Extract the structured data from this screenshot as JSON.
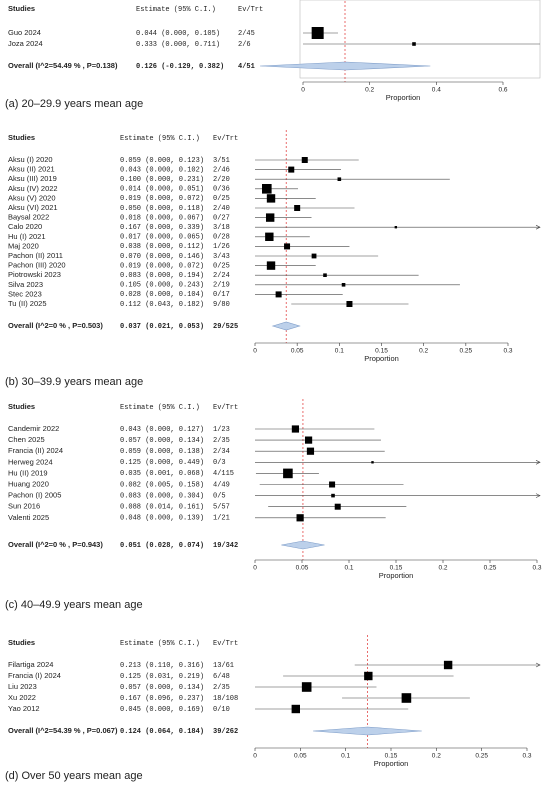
{
  "chart_data": [
    {
      "type": "forest",
      "caption": "(a) 20–29.9 years mean age",
      "columns": [
        "Studies",
        "Estimate (95% C.I.)",
        "Ev/Trt"
      ],
      "studies": [
        "Guo 2024",
        "Joza 2024"
      ],
      "estimate_labels": [
        "0.044 (0.000, 0.105)",
        "0.333 (0.000, 0.711)"
      ],
      "estimates": [
        0.044,
        0.333
      ],
      "lower": [
        0,
        0
      ],
      "upper": [
        0.105,
        0.711
      ],
      "ev_trt": [
        "2/45",
        "2/6"
      ],
      "weights": [
        10,
        3
      ],
      "overall": {
        "label": "Overall (I^2=54.49 % , P=0.138)",
        "estimate_label": "0.126 (-0.129, 0.382)",
        "estimate": 0.126,
        "lower": -0.129,
        "upper": 0.382,
        "ev_trt": "4/51"
      },
      "xlabel": "Proportion",
      "xlim": [
        0,
        0.6
      ],
      "xticks": [
        0,
        0.2,
        0.4,
        0.6
      ]
    },
    {
      "type": "forest",
      "caption": "(b) 30–39.9 years mean age",
      "columns": [
        "Studies",
        "Estimate (95% C.I.)",
        "Ev/Trt"
      ],
      "studies": [
        "Aksu (I) 2020",
        "Aksu (II) 2021",
        "Aksu (III) 2019",
        "Aksu (IV) 2022",
        "Aksu (V) 2020",
        "Aksu (VI) 2021",
        "Baysal 2022",
        "Calo 2020",
        "Hu (I) 2021",
        "Maj 2020",
        "Pachon (II) 2011",
        "Pachon (III) 2020",
        "Piotrowski 2023",
        "Silva 2023",
        "Stec 2023",
        "Tu (II) 2025"
      ],
      "estimate_labels": [
        "0.059 (0.000, 0.123)",
        "0.043 (0.000, 0.102)",
        "0.100 (0.000, 0.231)",
        "0.014 (0.000, 0.051)",
        "0.019 (0.000, 0.072)",
        "0.050 (0.000, 0.118)",
        "0.018 (0.000, 0.067)",
        "0.167 (0.000, 0.339)",
        "0.017 (0.000, 0.065)",
        "0.038 (0.000, 0.112)",
        "0.070 (0.000, 0.146)",
        "0.019 (0.000, 0.072)",
        "0.083 (0.000, 0.194)",
        "0.105 (0.000, 0.243)",
        "0.028 (0.000, 0.104)",
        "0.112 (0.043, 0.182)"
      ],
      "estimates": [
        0.059,
        0.043,
        0.1,
        0.014,
        0.019,
        0.05,
        0.018,
        0.167,
        0.017,
        0.038,
        0.07,
        0.019,
        0.083,
        0.105,
        0.028,
        0.112
      ],
      "lower": [
        0,
        0,
        0,
        0,
        0,
        0,
        0,
        0,
        0,
        0,
        0,
        0,
        0,
        0,
        0,
        0.043
      ],
      "upper": [
        0.123,
        0.102,
        0.231,
        0.051,
        0.072,
        0.118,
        0.067,
        0.339,
        0.065,
        0.112,
        0.146,
        0.072,
        0.194,
        0.243,
        0.104,
        0.182
      ],
      "ev_trt": [
        "3/51",
        "2/46",
        "2/20",
        "0/36",
        "0/25",
        "2/40",
        "0/27",
        "3/18",
        "0/28",
        "1/26",
        "3/43",
        "0/25",
        "2/24",
        "2/19",
        "0/17",
        "9/80"
      ],
      "weights": [
        5,
        5,
        3,
        8,
        7,
        5,
        7,
        2,
        7,
        5,
        4,
        7,
        3,
        3,
        5,
        5
      ],
      "overall": {
        "label": "Overall (I^2=0 % , P=0.503)",
        "estimate_label": "0.037 (0.021, 0.053)",
        "estimate": 0.037,
        "lower": 0.021,
        "upper": 0.053,
        "ev_trt": "29/525"
      },
      "xlabel": "Proportion",
      "xlim": [
        0,
        0.3
      ],
      "xticks": [
        0,
        0.05,
        0.1,
        0.15,
        0.2,
        0.25,
        0.3
      ]
    },
    {
      "type": "forest",
      "caption": "(c) 40–49.9 years mean age",
      "columns": [
        "Studies",
        "Estimate (95% C.I.)",
        "Ev/Trt"
      ],
      "studies": [
        "Candemir 2022",
        "Chen 2025",
        "Francia (II) 2024",
        "Herweg 2024",
        "Hu (II) 2019",
        "Huang 2020",
        "Pachon (I) 2005",
        "Sun 2016",
        "Valenti 2025"
      ],
      "estimate_labels": [
        "0.043 (0.000, 0.127)",
        "0.057 (0.000, 0.134)",
        "0.059 (0.000, 0.138)",
        "0.125 (0.000, 0.449)",
        "0.035 (0.001, 0.068)",
        "0.082 (0.005, 0.158)",
        "0.083 (0.000, 0.304)",
        "0.088 (0.014, 0.161)",
        "0.048 (0.000, 0.139)"
      ],
      "estimates": [
        0.043,
        0.057,
        0.059,
        0.125,
        0.035,
        0.082,
        0.083,
        0.088,
        0.048
      ],
      "lower": [
        0,
        0,
        0,
        0,
        0.001,
        0.005,
        0,
        0.014,
        0
      ],
      "upper": [
        0.127,
        0.134,
        0.138,
        0.449,
        0.068,
        0.158,
        0.304,
        0.161,
        0.139
      ],
      "ev_trt": [
        "1/23",
        "2/35",
        "2/34",
        "0/3",
        "4/115",
        "4/49",
        "0/5",
        "5/57",
        "1/21"
      ],
      "weights": [
        6,
        6,
        6,
        2,
        8,
        5,
        3,
        5,
        6
      ],
      "overall": {
        "label": "Overall (I^2=0 % , P=0.943)",
        "estimate_label": "0.051 (0.028, 0.074)",
        "estimate": 0.051,
        "lower": 0.028,
        "upper": 0.074,
        "ev_trt": "19/342"
      },
      "xlabel": "Proportion",
      "xlim": [
        0,
        0.3
      ],
      "xticks": [
        0,
        0.05,
        0.1,
        0.15,
        0.2,
        0.25,
        0.3
      ]
    },
    {
      "type": "forest",
      "caption": "(d) Over 50 years mean age",
      "columns": [
        "Studies",
        "Estimate (95% C.I.)",
        "Ev/Trt"
      ],
      "studies": [
        "Filartiga 2024",
        "Francia (I) 2024",
        "Liu 2023",
        "Xu 2022",
        "Yao 2012"
      ],
      "estimate_labels": [
        "0.213 (0.110, 0.316)",
        "0.125 (0.031, 0.219)",
        "0.057 (0.000, 0.134)",
        "0.167 (0.096, 0.237)",
        "0.045 (0.000, 0.169)"
      ],
      "estimates": [
        0.213,
        0.125,
        0.057,
        0.167,
        0.045
      ],
      "lower": [
        0.11,
        0.031,
        0,
        0.096,
        0
      ],
      "upper": [
        0.316,
        0.219,
        0.134,
        0.237,
        0.169
      ],
      "ev_trt": [
        "13/61",
        "6/48",
        "2/35",
        "18/108",
        "0/10"
      ],
      "weights": [
        7,
        7,
        8,
        8,
        7
      ],
      "overall": {
        "label": "Overall (I^2=54.39 % , P=0.067)",
        "estimate_label": "0.124 (0.064, 0.184)",
        "estimate": 0.124,
        "lower": 0.064,
        "upper": 0.184,
        "ev_trt": "39/262"
      },
      "xlabel": "Proportion",
      "xlim": [
        0,
        0.3
      ],
      "xticks": [
        0,
        0.05,
        0.1,
        0.15,
        0.2,
        0.25,
        0.3
      ]
    }
  ]
}
